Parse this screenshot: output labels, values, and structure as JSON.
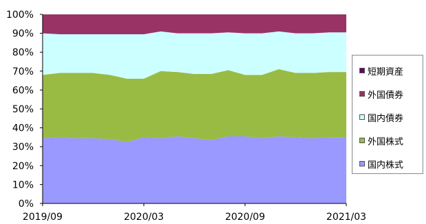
{
  "chart_data": {
    "type": "area",
    "title": "",
    "xlabel": "",
    "ylabel": "",
    "stacked": true,
    "ylim": [
      0,
      100
    ],
    "y_ticks": [
      "0%",
      "10%",
      "20%",
      "30%",
      "40%",
      "50%",
      "60%",
      "70%",
      "80%",
      "90%",
      "100%"
    ],
    "x_tick_labels": [
      "2019/09",
      "2020/03",
      "2020/09",
      "2021/03"
    ],
    "x": [
      "2019/09",
      "2019/10",
      "2019/11",
      "2019/12",
      "2020/01",
      "2020/02",
      "2020/03",
      "2020/04",
      "2020/05",
      "2020/06",
      "2020/07",
      "2020/08",
      "2020/09",
      "2020/10",
      "2020/11",
      "2020/12",
      "2021/01",
      "2021/02",
      "2021/03"
    ],
    "series": [
      {
        "name": "国内株式",
        "color": "#9999ff",
        "values": [
          34.5,
          35,
          34.5,
          34.5,
          34,
          32.5,
          35,
          34.5,
          35.5,
          34.5,
          33.5,
          35.5,
          35.5,
          34.5,
          35.5,
          35,
          34.5,
          35,
          35
        ]
      },
      {
        "name": "外国株式",
        "color": "#99bb44",
        "values": [
          33.5,
          34,
          34.5,
          34.5,
          34,
          33.5,
          31,
          35.5,
          34,
          34,
          35,
          35,
          32.5,
          33.5,
          35.5,
          34,
          34.5,
          34.5,
          34.5
        ]
      },
      {
        "name": "国内債券",
        "color": "#ccffff",
        "values": [
          22,
          20.5,
          20.5,
          20.5,
          21.5,
          23.5,
          23.5,
          21,
          20.5,
          21.5,
          21.5,
          20,
          22,
          22,
          20,
          21,
          21,
          21,
          21
        ]
      },
      {
        "name": "外国債券",
        "color": "#993366",
        "values": [
          10,
          10.5,
          10.5,
          10.5,
          10.5,
          10.5,
          10.5,
          9,
          10,
          10,
          10,
          9.5,
          10,
          10,
          9,
          10,
          10,
          9.5,
          9.5
        ]
      },
      {
        "name": "短期資産",
        "color": "#660066",
        "values": [
          0,
          0,
          0,
          0,
          0,
          0,
          0,
          0,
          0,
          0,
          0,
          0,
          0,
          0,
          0,
          0,
          0,
          0,
          0
        ]
      }
    ],
    "legend_position": "right",
    "legend_order": [
      "短期資産",
      "外国債券",
      "国内債券",
      "外国株式",
      "国内株式"
    ],
    "grid": false
  }
}
